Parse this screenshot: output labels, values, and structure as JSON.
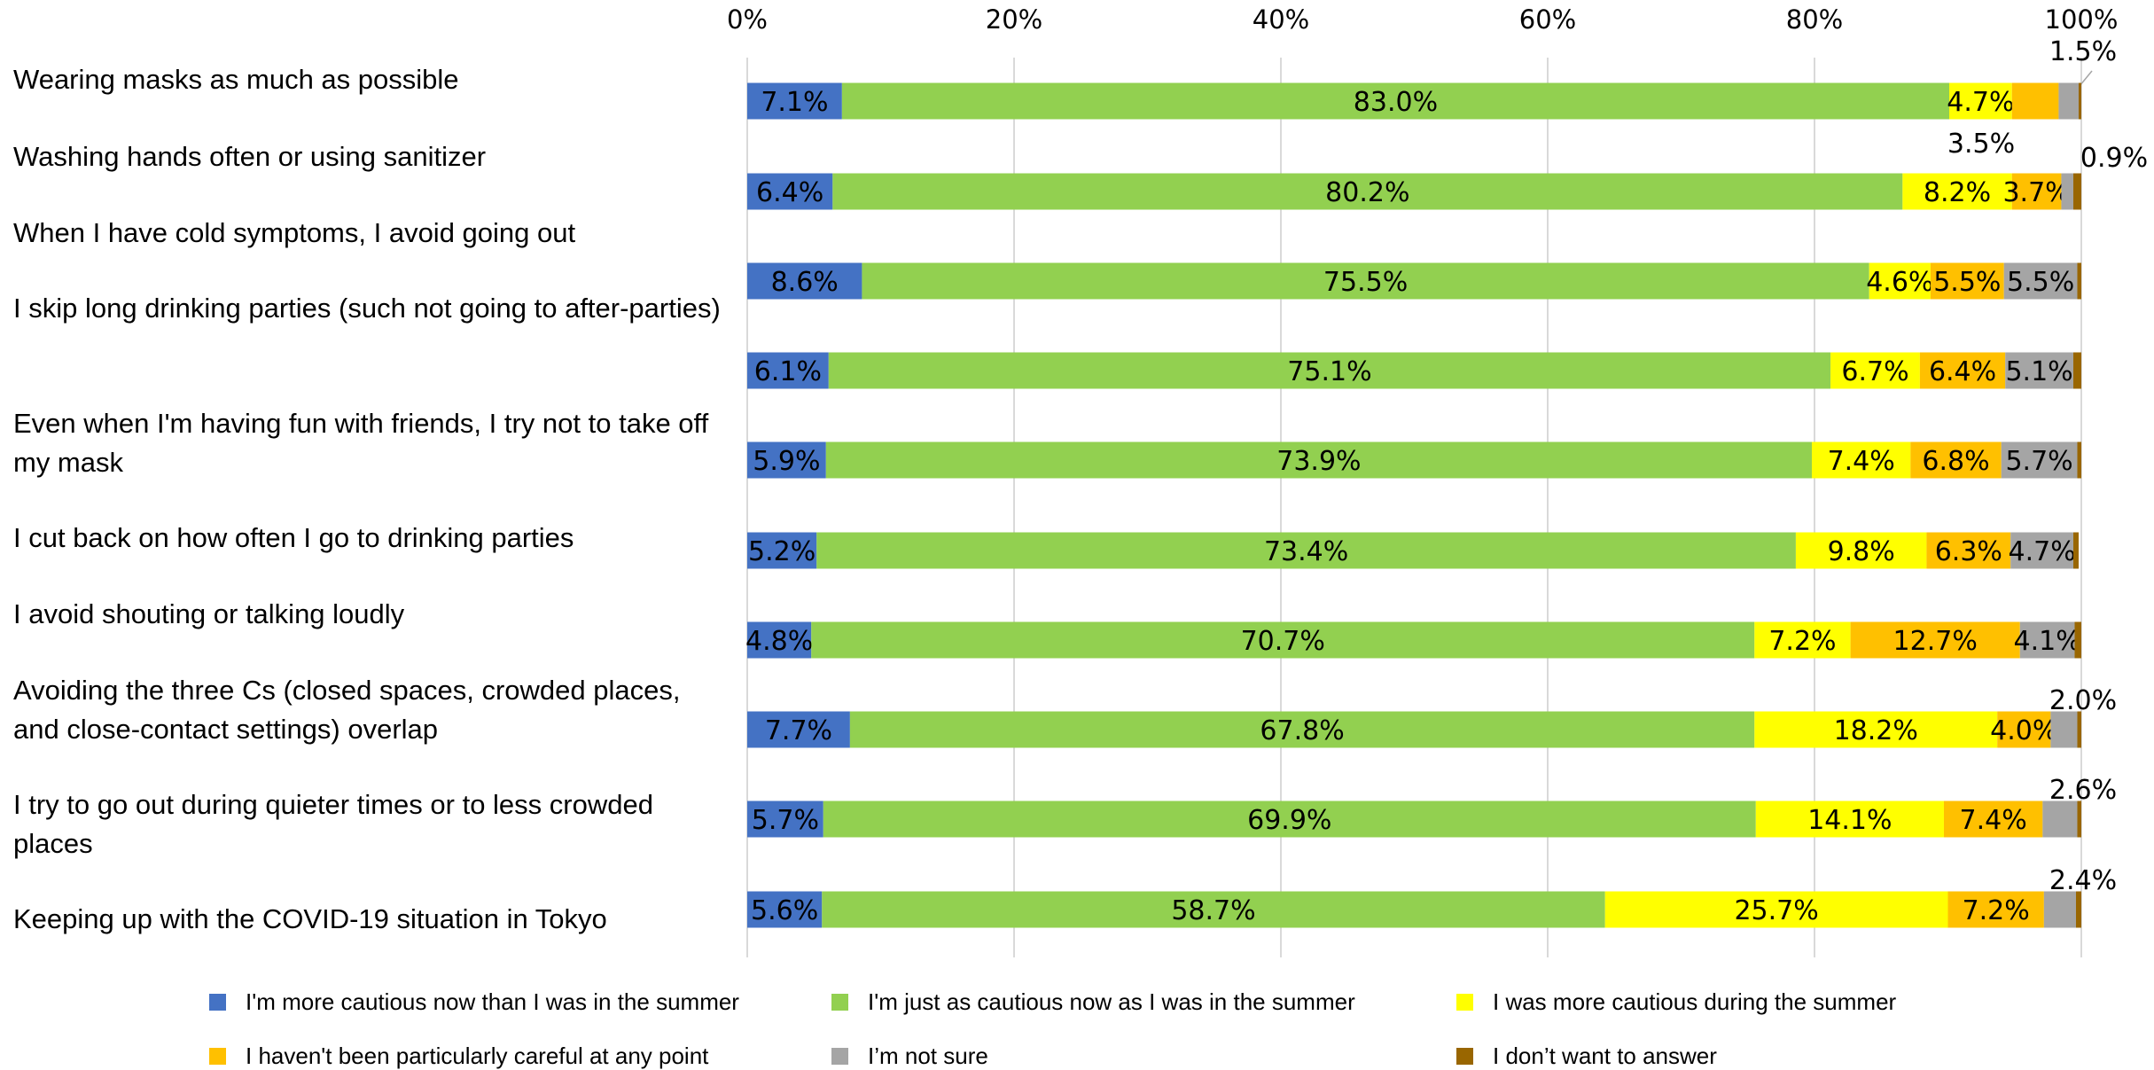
{
  "chart_data": {
    "type": "bar",
    "orientation": "horizontal",
    "stacked": "percent",
    "xlim": [
      0,
      100
    ],
    "x_ticks": [
      "0%",
      "20%",
      "40%",
      "60%",
      "80%",
      "100%"
    ],
    "grid": true,
    "legend_position": "bottom",
    "categories": [
      "Wearing masks as much as possible",
      "Washing hands often or using sanitizer",
      "When I have cold symptoms, I avoid going out",
      "I skip long drinking parties (such not going to after-parties)",
      "Even when I'm having fun with friends, I try not to take off my mask",
      "I cut back on how often I go to drinking parties",
      "I avoid shouting or talking loudly",
      "Avoiding the three Cs (closed spaces, crowded places, and close-contact settings) overlap",
      "I try to go out during quieter times or to less crowded places",
      "Keeping up with the COVID-19 situation in Tokyo"
    ],
    "series": [
      {
        "name": "I'm more cautious now than I was in the summer",
        "color": "#4472C4",
        "values": [
          7.1,
          6.4,
          8.6,
          6.1,
          5.9,
          5.2,
          4.8,
          7.7,
          5.7,
          5.6
        ]
      },
      {
        "name": "I'm just as cautious now as I was in the summer",
        "color": "#92D050",
        "values": [
          83.0,
          80.2,
          75.5,
          75.1,
          73.9,
          73.4,
          70.7,
          67.8,
          69.9,
          58.7
        ]
      },
      {
        "name": "I was more cautious during the summer",
        "color": "#FFFF00",
        "values": [
          4.7,
          8.2,
          4.6,
          6.7,
          7.4,
          9.8,
          7.2,
          18.2,
          14.1,
          25.7
        ]
      },
      {
        "name": "I haven't been particularly careful at any point",
        "color": "#FFC000",
        "values": [
          3.5,
          3.7,
          5.5,
          6.4,
          6.8,
          6.3,
          12.7,
          4.0,
          7.4,
          7.2
        ]
      },
      {
        "name": "I’m not sure",
        "color": "#A5A5A5",
        "values": [
          1.5,
          0.9,
          5.5,
          5.1,
          5.7,
          4.7,
          4.1,
          2.0,
          2.6,
          2.4
        ]
      },
      {
        "name": "I don’t want to answer",
        "color": "#996600",
        "values": [
          0.2,
          0.6,
          0.3,
          0.6,
          0.3,
          0.4,
          0.5,
          0.3,
          0.3,
          0.4
        ]
      }
    ],
    "labels": [
      [
        "7.1%",
        "83.0%",
        "4.7%",
        "3.5%",
        "1.5%",
        ""
      ],
      [
        "6.4%",
        "80.2%",
        "8.2%",
        "3.7%",
        "0.9%",
        ""
      ],
      [
        "8.6%",
        "75.5%",
        "4.6%",
        "5.5%",
        "5.5%",
        ""
      ],
      [
        "6.1%",
        "75.1%",
        "6.7%",
        "6.4%",
        "5.1%",
        ""
      ],
      [
        "5.9%",
        "73.9%",
        "7.4%",
        "6.8%",
        "5.7%",
        ""
      ],
      [
        "5.2%",
        "73.4%",
        "9.8%",
        "6.3%",
        "4.7%",
        ""
      ],
      [
        "4.8%",
        "70.7%",
        "7.2%",
        "12.7%",
        "4.1%",
        ""
      ],
      [
        "7.7%",
        "67.8%",
        "18.2%",
        "4.0%",
        "2.0%",
        ""
      ],
      [
        "5.7%",
        "69.9%",
        "14.1%",
        "7.4%",
        "2.6%",
        ""
      ],
      [
        "5.6%",
        "58.7%",
        "25.7%",
        "7.2%",
        "2.4%",
        ""
      ]
    ]
  }
}
